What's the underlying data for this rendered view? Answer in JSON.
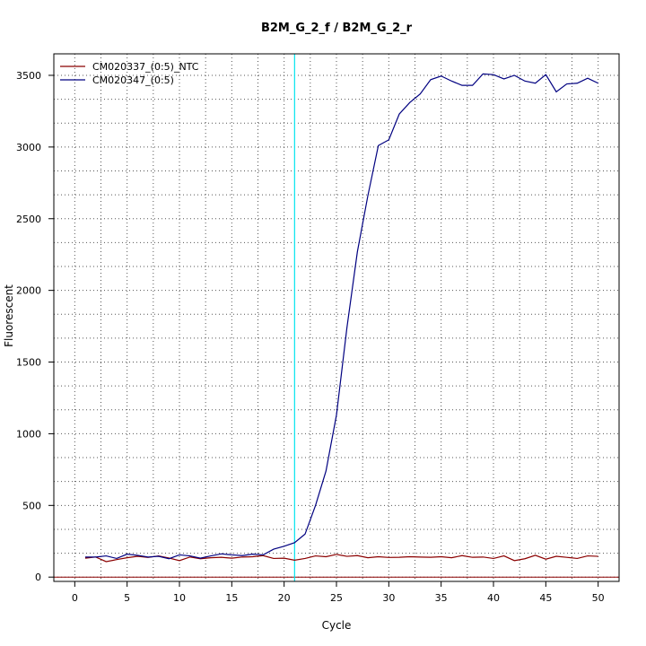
{
  "chart_data": {
    "type": "line",
    "title": "B2M_G_2_f / B2M_G_2_r",
    "xlabel": "Cycle",
    "ylabel": "Fluorescent",
    "xlim": [
      -2,
      52
    ],
    "ylim": [
      -30,
      3650
    ],
    "xticks": [
      0,
      5,
      10,
      15,
      20,
      25,
      30,
      35,
      40,
      45,
      50
    ],
    "yticks": [
      0,
      500,
      1000,
      1500,
      2000,
      2500,
      3000,
      3500
    ],
    "grid": true,
    "grid_style": "dotted",
    "threshold_cycle": 21,
    "threshold_color": "#00e5ee",
    "baseline_color": "#8b0000",
    "legend_position": "top-left",
    "x": [
      1,
      2,
      3,
      4,
      5,
      6,
      7,
      8,
      9,
      10,
      11,
      12,
      13,
      14,
      15,
      16,
      17,
      18,
      19,
      20,
      21,
      22,
      23,
      24,
      25,
      26,
      27,
      28,
      29,
      30,
      31,
      32,
      33,
      34,
      35,
      36,
      37,
      38,
      39,
      40,
      41,
      42,
      43,
      44,
      45,
      46,
      47,
      48,
      49,
      50
    ],
    "series": [
      {
        "name": "CM020337_(0:5)_NTC",
        "color": "#8b0000",
        "values": [
          132,
          140,
          108,
          122,
          135,
          145,
          137,
          148,
          133,
          115,
          140,
          128,
          135,
          138,
          132,
          140,
          142,
          150,
          130,
          132,
          118,
          130,
          148,
          142,
          158,
          145,
          150,
          135,
          142,
          137,
          138,
          142,
          140,
          138,
          142,
          135,
          150,
          138,
          140,
          130,
          148,
          115,
          128,
          152,
          125,
          145,
          138,
          130,
          148,
          145
        ]
      },
      {
        "name": "CM020347_(0:5)",
        "color": "#000080",
        "values": [
          140,
          140,
          148,
          130,
          160,
          152,
          140,
          145,
          128,
          155,
          148,
          132,
          148,
          162,
          155,
          150,
          160,
          155,
          195,
          215,
          240,
          300,
          500,
          740,
          1130,
          1740,
          2270,
          2660,
          3010,
          3050,
          3230,
          3310,
          3370,
          3470,
          3495,
          3460,
          3430,
          3430,
          3510,
          3505,
          3475,
          3500,
          3460,
          3445,
          3505,
          3385,
          3440,
          3445,
          3480,
          3445
        ]
      }
    ]
  }
}
